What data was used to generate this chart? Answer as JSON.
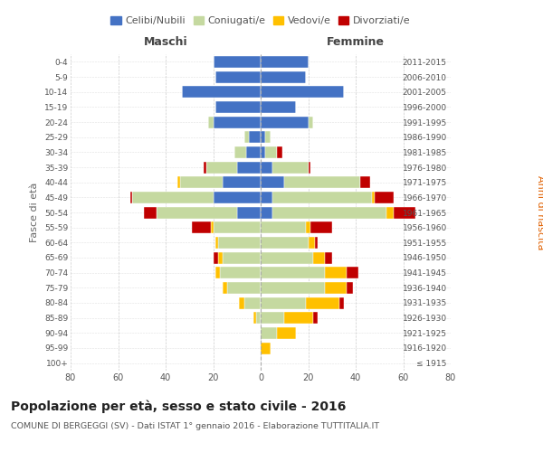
{
  "age_groups": [
    "100+",
    "95-99",
    "90-94",
    "85-89",
    "80-84",
    "75-79",
    "70-74",
    "65-69",
    "60-64",
    "55-59",
    "50-54",
    "45-49",
    "40-44",
    "35-39",
    "30-34",
    "25-29",
    "20-24",
    "15-19",
    "10-14",
    "5-9",
    "0-4"
  ],
  "birth_years": [
    "≤ 1915",
    "1916-1920",
    "1921-1925",
    "1926-1930",
    "1931-1935",
    "1936-1940",
    "1941-1945",
    "1946-1950",
    "1951-1955",
    "1956-1960",
    "1961-1965",
    "1966-1970",
    "1971-1975",
    "1976-1980",
    "1981-1985",
    "1986-1990",
    "1991-1995",
    "1996-2000",
    "2001-2005",
    "2006-2010",
    "2011-2015"
  ],
  "male": {
    "celibi": [
      0,
      0,
      0,
      0,
      0,
      0,
      0,
      0,
      0,
      0,
      10,
      20,
      16,
      10,
      6,
      5,
      20,
      19,
      33,
      19,
      20
    ],
    "coniugati": [
      0,
      0,
      0,
      2,
      7,
      14,
      17,
      16,
      18,
      20,
      34,
      34,
      18,
      13,
      5,
      2,
      2,
      0,
      0,
      0,
      0
    ],
    "vedovi": [
      0,
      0,
      0,
      1,
      2,
      2,
      2,
      2,
      1,
      1,
      0,
      0,
      1,
      0,
      0,
      0,
      0,
      0,
      0,
      0,
      0
    ],
    "divorziati": [
      0,
      0,
      0,
      0,
      0,
      0,
      0,
      2,
      0,
      8,
      5,
      1,
      0,
      1,
      0,
      0,
      0,
      0,
      0,
      0,
      0
    ]
  },
  "female": {
    "nubili": [
      0,
      0,
      0,
      0,
      0,
      0,
      0,
      0,
      0,
      0,
      5,
      5,
      10,
      5,
      2,
      2,
      20,
      15,
      35,
      19,
      20
    ],
    "coniugate": [
      0,
      0,
      7,
      10,
      19,
      27,
      27,
      22,
      20,
      19,
      48,
      42,
      32,
      15,
      5,
      2,
      2,
      0,
      0,
      0,
      0
    ],
    "vedove": [
      0,
      4,
      8,
      12,
      14,
      9,
      9,
      5,
      3,
      2,
      3,
      1,
      0,
      0,
      0,
      0,
      0,
      0,
      0,
      0,
      0
    ],
    "divorziate": [
      0,
      0,
      0,
      2,
      2,
      3,
      5,
      3,
      1,
      9,
      9,
      8,
      4,
      1,
      2,
      0,
      0,
      0,
      0,
      0,
      0
    ]
  },
  "colors": {
    "celibi": "#4472c4",
    "coniugati": "#c5d9a0",
    "vedovi": "#ffc000",
    "divorziati": "#c00000"
  },
  "xlim": 80,
  "title": "Popolazione per età, sesso e stato civile - 2016",
  "subtitle": "COMUNE DI BERGEGGI (SV) - Dati ISTAT 1° gennaio 2016 - Elaborazione TUTTITALIA.IT",
  "ylabel_left": "Fasce di età",
  "ylabel_right": "Anni di nascita",
  "xlabel_male": "Maschi",
  "xlabel_female": "Femmine",
  "legend_labels": [
    "Celibi/Nubili",
    "Coniugati/e",
    "Vedovi/e",
    "Divorziati/e"
  ],
  "bg_color": "#ffffff",
  "grid_color": "#cccccc"
}
